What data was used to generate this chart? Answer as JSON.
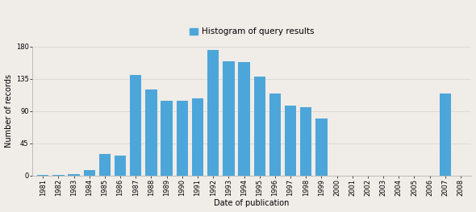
{
  "years": [
    1981,
    1982,
    1983,
    1984,
    1985,
    1986,
    1987,
    1988,
    1989,
    1990,
    1991,
    1992,
    1993,
    1994,
    1995,
    1996,
    1997,
    1998,
    1999,
    2000,
    2001,
    2002,
    2003,
    2004,
    2005,
    2006,
    2007,
    2008
  ],
  "values": [
    1,
    1,
    2,
    8,
    30,
    28,
    140,
    120,
    105,
    105,
    108,
    175,
    160,
    158,
    138,
    115,
    98,
    95,
    80,
    0,
    0,
    0,
    0,
    0,
    0,
    0,
    115,
    0
  ],
  "bar_color": "#4da6d9",
  "background_color": "#f0ece8",
  "ylabel": "Number of records",
  "xlabel": "Date of publication",
  "legend_label": "Histogram of query results",
  "legend_color": "#4da6d9",
  "ylim": [
    0,
    180
  ],
  "yticks": [
    0,
    45,
    90,
    135,
    180
  ],
  "axis_fontsize": 7,
  "tick_fontsize": 6,
  "legend_fontsize": 7.5
}
